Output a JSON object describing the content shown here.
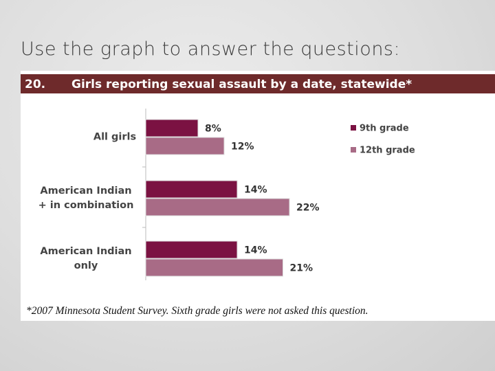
{
  "slide_title": "Use the graph to answer the questions:",
  "chart_data": {
    "type": "hbar",
    "number": "20.",
    "title": "Girls reporting sexual assault by a date, statewide*",
    "categories": [
      "All girls",
      "American Indian + in combination",
      "American Indian only"
    ],
    "series": [
      {
        "name": "9th grade",
        "color": "#7b1242",
        "values": [
          8,
          14,
          14
        ],
        "value_labels": [
          "8%",
          "14%",
          "14%"
        ]
      },
      {
        "name": "12th grade",
        "color": "#a86b86",
        "values": [
          12,
          22,
          21
        ],
        "value_labels": [
          "12%",
          "22%",
          "21%"
        ]
      }
    ],
    "legend": "right",
    "footnote": "*2007 Minnesota Student Survey. Sixth grade girls were not asked this question."
  }
}
